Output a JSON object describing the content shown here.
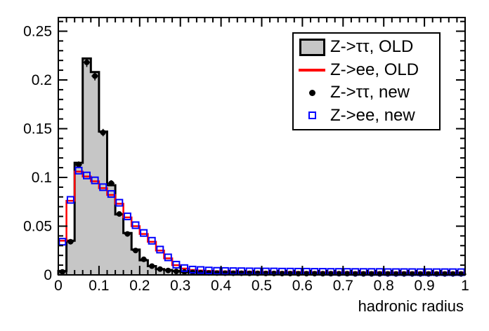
{
  "figure": {
    "background": "#ffffff"
  },
  "chart_data": {
    "type": "bar",
    "subtype": "overlaid-step-histograms",
    "title": "",
    "xlabel": "hadronic radius",
    "ylabel": "",
    "xlim": [
      0,
      1
    ],
    "ylim": [
      0,
      0.264
    ],
    "grid": false,
    "x_tick_values": [
      0,
      0.1,
      0.2,
      0.3,
      0.4,
      0.5,
      0.6,
      0.7,
      0.8,
      0.9,
      1
    ],
    "x_tick_labels": [
      "0",
      "0.1",
      "0.2",
      "0.3",
      "0.4",
      "0.5",
      "0.6",
      "0.7",
      "0.8",
      "0.9",
      "1"
    ],
    "y_tick_values": [
      0,
      0.05,
      0.1,
      0.15,
      0.2,
      0.25
    ],
    "y_tick_labels": [
      "0",
      "0.05",
      "0.1",
      "0.15",
      "0.2",
      "0.25"
    ],
    "x_minor_tick_step": 0.02,
    "y_minor_tick_step": 0.01,
    "n_bins": 50,
    "bin_width": 0.02,
    "series": [
      {
        "name": "Z->ττ, OLD",
        "style": "filled-step-histogram",
        "line_color": "#000000",
        "fill_color": "#c6c6c6",
        "values": [
          0.004,
          0.035,
          0.115,
          0.222,
          0.208,
          0.147,
          0.092,
          0.062,
          0.043,
          0.026,
          0.015,
          0.009,
          0.006,
          0.005,
          0.004,
          0.003,
          0.0025,
          0.002,
          0.0018,
          0.0016,
          0.0015,
          0.0014,
          0.0013,
          0.0012,
          0.0011,
          0.0011,
          0.001,
          0.001,
          0.0009,
          0.0009,
          0.0008,
          0.0008,
          0.0008,
          0.0007,
          0.0007,
          0.0007,
          0.0006,
          0.0006,
          0.0006,
          0.0006,
          0.0005,
          0.0005,
          0.0005,
          0.0005,
          0.0005,
          0.0004,
          0.0004,
          0.0004,
          0.0004,
          0.0004
        ]
      },
      {
        "name": "Z->ee, OLD",
        "style": "step-histogram-line",
        "line_color": "#ff0000",
        "values": [
          0.035,
          0.076,
          0.106,
          0.101,
          0.096,
          0.089,
          0.082,
          0.073,
          0.059,
          0.05,
          0.042,
          0.034,
          0.025,
          0.017,
          0.01,
          0.0065,
          0.005,
          0.0045,
          0.004,
          0.0038,
          0.0036,
          0.0035,
          0.0034,
          0.0033,
          0.0032,
          0.0032,
          0.0031,
          0.0031,
          0.003,
          0.003,
          0.0029,
          0.0029,
          0.0029,
          0.0028,
          0.0028,
          0.0028,
          0.0027,
          0.0027,
          0.0027,
          0.0027,
          0.0026,
          0.0026,
          0.0026,
          0.0026,
          0.0025,
          0.0025,
          0.0025,
          0.0025,
          0.0025,
          0.0025
        ]
      },
      {
        "name": "Z->ττ, new",
        "style": "points-with-error-bars",
        "marker": "filled-circle",
        "color": "#000000",
        "values": [
          0.003,
          0.034,
          0.113,
          0.218,
          0.204,
          0.146,
          0.094,
          0.0625,
          0.042,
          0.025,
          0.016,
          0.009,
          0.006,
          0.0045,
          0.0035,
          0.003,
          0.0025,
          0.0022,
          0.002,
          0.0019,
          0.0018,
          0.0017,
          0.0017,
          0.0016,
          0.0016,
          0.0015,
          0.0015,
          0.0014,
          0.0014,
          0.0013,
          0.0013,
          0.0013,
          0.0012,
          0.0012,
          0.0012,
          0.0012,
          0.0011,
          0.0011,
          0.0011,
          0.0011,
          0.0011,
          0.001,
          0.001,
          0.001,
          0.001,
          0.001,
          0.001,
          0.001,
          0.001,
          0.001
        ],
        "errors": [
          0.0006,
          0.0018,
          0.0034,
          0.0047,
          0.0045,
          0.0038,
          0.0031,
          0.0025,
          0.0021,
          0.0016,
          0.0013,
          0.001,
          0.0008,
          0.0007,
          0.0006,
          0.0005,
          0.0005,
          0.0005,
          0.0005,
          0.0004,
          0.0004,
          0.0004,
          0.0004,
          0.0004,
          0.0004,
          0.0004,
          0.0004,
          0.0004,
          0.0004,
          0.0004,
          0.0004,
          0.0004,
          0.0003,
          0.0003,
          0.0003,
          0.0003,
          0.0003,
          0.0003,
          0.0003,
          0.0003,
          0.0003,
          0.0003,
          0.0003,
          0.0003,
          0.0003,
          0.0003,
          0.0003,
          0.0003,
          0.0003,
          0.0003
        ]
      },
      {
        "name": "Z->ee, new",
        "style": "points",
        "marker": "open-square",
        "color": "#0000ff",
        "values": [
          0.034,
          0.077,
          0.107,
          0.102,
          0.097,
          0.09,
          0.083,
          0.074,
          0.06,
          0.051,
          0.043,
          0.035,
          0.026,
          0.018,
          0.0105,
          0.007,
          0.0055,
          0.005,
          0.0045,
          0.0042,
          0.004,
          0.0039,
          0.0038,
          0.0037,
          0.0036,
          0.0035,
          0.0035,
          0.0034,
          0.0034,
          0.0033,
          0.0033,
          0.0032,
          0.0032,
          0.0031,
          0.0031,
          0.0031,
          0.003,
          0.003,
          0.003,
          0.003,
          0.0029,
          0.0029,
          0.0029,
          0.0029,
          0.0028,
          0.0028,
          0.0028,
          0.0028,
          0.0028,
          0.0028
        ]
      }
    ],
    "legend": {
      "position": "top-right",
      "entries": [
        {
          "label": "Z->ττ, OLD",
          "marker": "gray-filled-box"
        },
        {
          "label": "Z->ee, OLD",
          "marker": "red-line"
        },
        {
          "label": "Z->ττ, new",
          "marker": "black-filled-circle"
        },
        {
          "label": "Z->ee, new",
          "marker": "blue-open-square"
        }
      ]
    }
  }
}
